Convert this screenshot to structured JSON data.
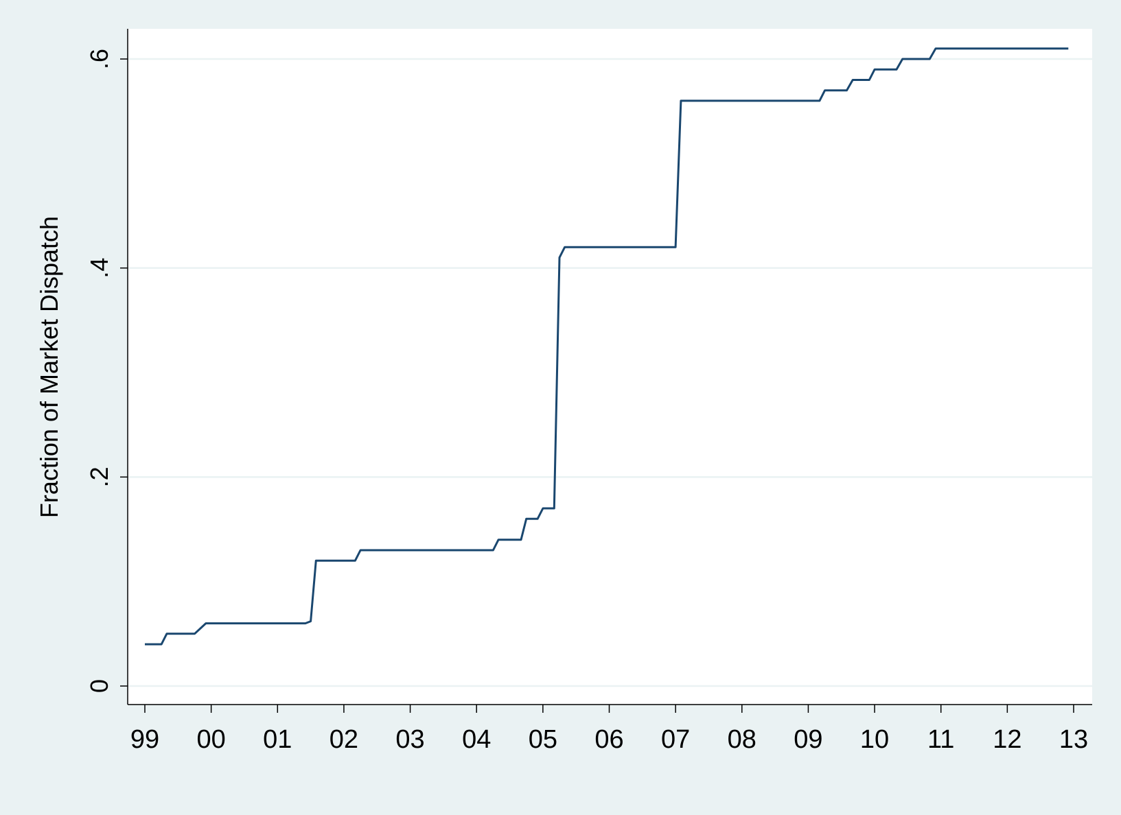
{
  "chart_data": {
    "type": "line",
    "title": "",
    "xlabel": "",
    "ylabel": "Fraction of Market Dispatch",
    "xlim": [
      1999,
      2013
    ],
    "ylim": [
      0,
      0.6
    ],
    "x_tick_values": [
      1999,
      2000,
      2001,
      2002,
      2003,
      2004,
      2005,
      2006,
      2007,
      2008,
      2009,
      2010,
      2011,
      2012,
      2013
    ],
    "x_tick_labels": [
      "99",
      "00",
      "01",
      "02",
      "03",
      "04",
      "05",
      "06",
      "07",
      "08",
      "09",
      "10",
      "11",
      "12",
      "13"
    ],
    "y_tick_values": [
      0,
      0.2,
      0.4,
      0.6
    ],
    "y_tick_labels": [
      "0",
      ".2",
      ".4",
      ".6"
    ],
    "grid": true,
    "colors": {
      "background": "#eaf2f3",
      "plot_area": "#ffffff",
      "line": "#1a476f",
      "grid": "#eaf2f3"
    },
    "series": [
      {
        "x": [
          1999.0,
          1999.25,
          1999.33,
          1999.75,
          1999.92,
          2001.42,
          2001.5,
          2001.58,
          2002.17,
          2002.25,
          2004.25,
          2004.33,
          2004.67,
          2004.75,
          2004.92,
          2005.0,
          2005.17,
          2005.25,
          2005.33,
          2007.0,
          2007.08,
          2009.17,
          2009.25,
          2009.58,
          2009.67,
          2009.92,
          2010.0,
          2010.33,
          2010.42,
          2010.83,
          2010.92,
          2012.92
        ],
        "y": [
          0.04,
          0.04,
          0.05,
          0.05,
          0.06,
          0.06,
          0.062,
          0.12,
          0.12,
          0.13,
          0.13,
          0.14,
          0.14,
          0.16,
          0.16,
          0.17,
          0.17,
          0.41,
          0.42,
          0.42,
          0.56,
          0.56,
          0.57,
          0.57,
          0.58,
          0.58,
          0.59,
          0.59,
          0.6,
          0.6,
          0.61,
          0.61
        ]
      }
    ]
  }
}
